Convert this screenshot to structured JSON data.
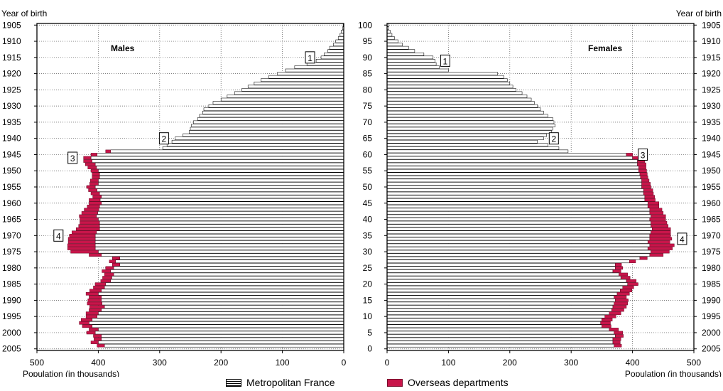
{
  "chart_data": {
    "type": "population-pyramid",
    "colors": {
      "metropolitan": "#ffffff",
      "overseas": "#c8154a"
    },
    "left_panel": {
      "series_label": "Males",
      "axis_title_top": "Year of birth",
      "x_axis_label": "Population (in thousands)",
      "x_ticks": [
        "500",
        "400",
        "300",
        "200",
        "100",
        "0"
      ],
      "xlim": [
        0,
        500
      ]
    },
    "right_panel": {
      "series_label": "Females",
      "axis_title_top": "Year of birth",
      "x_axis_label": "Population (in thousands)",
      "x_ticks": [
        "0",
        "100",
        "200",
        "300",
        "400",
        "500"
      ],
      "xlim": [
        0,
        500
      ]
    },
    "year_ticks": [
      "1905",
      "1910",
      "1915",
      "1920",
      "1925",
      "1930",
      "1935",
      "1940",
      "1945",
      "1950",
      "1955",
      "1960",
      "1965",
      "1970",
      "1975",
      "1980",
      "1985",
      "1990",
      "1995",
      "2000",
      "2005"
    ],
    "age_ticks": [
      "100",
      "95",
      "90",
      "85",
      "80",
      "75",
      "70",
      "65",
      "60",
      "55",
      "50",
      "45",
      "40",
      "35",
      "30",
      "25",
      "20",
      "15",
      "10",
      "5",
      "0"
    ],
    "annotations": [
      {
        "label": "1",
        "panel": "males",
        "year": 1915
      },
      {
        "label": "2",
        "panel": "males",
        "year": 1940
      },
      {
        "label": "3",
        "panel": "males",
        "year": 1946
      },
      {
        "label": "4",
        "panel": "males",
        "year": 1970
      },
      {
        "label": "1",
        "panel": "females",
        "year": 1916
      },
      {
        "label": "2",
        "panel": "females",
        "year": 1940
      },
      {
        "label": "3",
        "panel": "females",
        "year": 1945
      },
      {
        "label": "4",
        "panel": "females",
        "year": 1971
      }
    ],
    "legend": [
      {
        "key": "metropolitan",
        "label": "Metropolitan France"
      },
      {
        "key": "overseas",
        "label": "Overseas departments"
      }
    ],
    "males_metro": [
      1,
      2,
      4,
      6,
      9,
      13,
      17,
      23,
      26,
      32,
      37,
      45,
      60,
      80,
      95,
      108,
      122,
      135,
      146,
      156,
      166,
      178,
      190,
      200,
      213,
      220,
      228,
      230,
      235,
      238,
      245,
      248,
      250,
      252,
      262,
      275,
      280,
      288,
      295,
      380,
      402,
      412,
      410,
      405,
      403,
      400,
      398,
      398,
      400,
      400,
      405,
      402,
      398,
      395,
      397,
      395,
      398,
      399,
      401,
      403,
      400,
      398,
      398,
      398,
      403,
      405,
      405,
      405,
      405,
      405,
      400,
      395,
      365,
      372,
      365,
      375,
      380,
      375,
      378,
      380,
      388,
      390,
      395,
      400,
      395,
      395,
      394,
      390,
      395,
      400,
      402,
      410,
      415,
      410,
      400,
      405,
      395,
      395,
      400,
      390
    ],
    "males_over": [
      0,
      0,
      0,
      0,
      0,
      0,
      0,
      0,
      0,
      0,
      0,
      0,
      0,
      0,
      0,
      0,
      0,
      0,
      0,
      0,
      0,
      0,
      0,
      0,
      0,
      0,
      0,
      0,
      0,
      0,
      0,
      0,
      0,
      0,
      0,
      0,
      0,
      0,
      0,
      8,
      10,
      12,
      14,
      16,
      14,
      12,
      12,
      12,
      13,
      14,
      14,
      14,
      14,
      14,
      18,
      20,
      20,
      24,
      26,
      28,
      30,
      32,
      34,
      38,
      40,
      42,
      44,
      44,
      45,
      45,
      45,
      20,
      12,
      10,
      12,
      13,
      14,
      15,
      15,
      16,
      17,
      18,
      19,
      20,
      20,
      22,
      24,
      24,
      20,
      20,
      18,
      18,
      16,
      16,
      15,
      14,
      13,
      12,
      12,
      12
    ],
    "females_metro": [
      2,
      3,
      5,
      8,
      12,
      18,
      25,
      35,
      45,
      60,
      75,
      78,
      80,
      85,
      100,
      180,
      190,
      196,
      200,
      205,
      210,
      220,
      228,
      235,
      240,
      245,
      250,
      255,
      262,
      270,
      272,
      274,
      270,
      268,
      260,
      255,
      245,
      262,
      280,
      295,
      390,
      400,
      408,
      408,
      410,
      410,
      412,
      413,
      415,
      415,
      415,
      418,
      418,
      420,
      420,
      425,
      425,
      428,
      428,
      430,
      428,
      430,
      430,
      432,
      430,
      428,
      428,
      425,
      428,
      425,
      430,
      428,
      412,
      395,
      372,
      372,
      368,
      378,
      381,
      390,
      392,
      384,
      380,
      375,
      370,
      372,
      370,
      368,
      366,
      362,
      355,
      350,
      348,
      350,
      362,
      370,
      372,
      368,
      368,
      370
    ],
    "females_over": [
      0,
      0,
      0,
      0,
      0,
      0,
      0,
      0,
      0,
      0,
      0,
      0,
      0,
      0,
      0,
      0,
      0,
      0,
      0,
      0,
      0,
      0,
      0,
      0,
      0,
      0,
      0,
      0,
      0,
      0,
      0,
      0,
      0,
      0,
      0,
      0,
      0,
      0,
      0,
      0,
      10,
      12,
      12,
      14,
      12,
      13,
      12,
      12,
      12,
      14,
      15,
      15,
      16,
      16,
      17,
      18,
      18,
      20,
      22,
      24,
      26,
      26,
      28,
      30,
      32,
      34,
      36,
      36,
      40,
      40,
      30,
      22,
      12,
      10,
      10,
      12,
      13,
      14,
      15,
      16,
      17,
      18,
      19,
      20,
      20,
      21,
      22,
      22,
      20,
      19,
      18,
      17,
      16,
      15,
      15,
      14,
      13,
      13,
      12,
      12
    ]
  }
}
